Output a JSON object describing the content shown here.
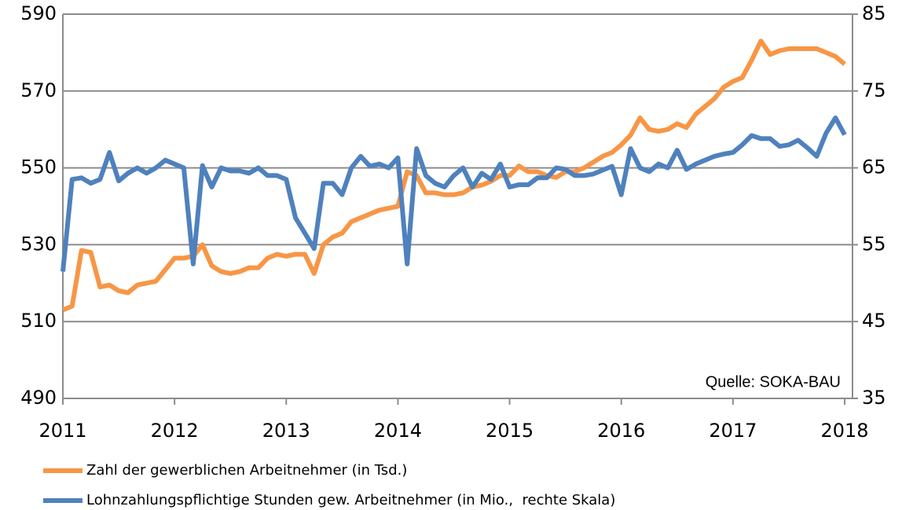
{
  "chart_data": {
    "type": "line",
    "x": [
      2011,
      2011.083,
      2011.167,
      2011.25,
      2011.333,
      2011.417,
      2011.5,
      2011.583,
      2011.667,
      2011.75,
      2011.833,
      2011.917,
      2012,
      2012.083,
      2012.167,
      2012.25,
      2012.333,
      2012.417,
      2012.5,
      2012.583,
      2012.667,
      2012.75,
      2012.833,
      2012.917,
      2013,
      2013.083,
      2013.167,
      2013.25,
      2013.333,
      2013.417,
      2013.5,
      2013.583,
      2013.667,
      2013.75,
      2013.833,
      2013.917,
      2014,
      2014.083,
      2014.167,
      2014.25,
      2014.333,
      2014.417,
      2014.5,
      2014.583,
      2014.667,
      2014.75,
      2014.833,
      2014.917,
      2015,
      2015.083,
      2015.167,
      2015.25,
      2015.333,
      2015.417,
      2015.5,
      2015.583,
      2015.667,
      2015.75,
      2015.833,
      2015.917,
      2016,
      2016.083,
      2016.167,
      2016.25,
      2016.333,
      2016.417,
      2016.5,
      2016.583,
      2016.667,
      2016.75,
      2016.833,
      2016.917,
      2017,
      2017.083,
      2017.167,
      2017.25,
      2017.333,
      2017.417,
      2017.5,
      2017.583,
      2017.667,
      2017.75,
      2017.833,
      2017.917,
      2018
    ],
    "series": [
      {
        "name": "Zahl der gewerblichen Arbeitnehmer (in Tsd.)",
        "color": "#f79646",
        "values": [
          513,
          514,
          528.5,
          528,
          519,
          519.5,
          518,
          517.5,
          519.5,
          520,
          520.5,
          523.5,
          526.5,
          526.5,
          527,
          530,
          524.5,
          523,
          522.5,
          523,
          524,
          524,
          526.5,
          527.5,
          527,
          527.5,
          527.5,
          522.5,
          530,
          532,
          533,
          536,
          537,
          538,
          539,
          539.5,
          540,
          549,
          548,
          543.5,
          543.5,
          543,
          543,
          543.5,
          545,
          545.5,
          546.5,
          548,
          548,
          550.5,
          549,
          549,
          548,
          547.5,
          549,
          549,
          550,
          551.5,
          553,
          554,
          556,
          558.5,
          563,
          560,
          559.5,
          560,
          561.5,
          560.5,
          564,
          566,
          568,
          571,
          572.5,
          573.5,
          578,
          583,
          579.5,
          580.5,
          581,
          581,
          581,
          581,
          580,
          579,
          577
        ]
      },
      {
        "name": "Lohnzahlungspflichtige Stunden gew. Arbeitnehmer (in Mio.,  rechte Skala)",
        "color": "#4f81bd",
        "axis": "y2",
        "values": [
          51.5,
          63.5,
          63.7,
          63,
          63.5,
          67,
          63.3,
          64.3,
          65,
          64.3,
          65,
          66,
          65.5,
          65,
          52.5,
          65.3,
          62.5,
          65,
          64.6,
          64.6,
          64.3,
          65,
          64,
          64,
          63.5,
          58.5,
          56.5,
          54.5,
          63,
          63,
          61.5,
          65,
          66.5,
          65.2,
          65.5,
          65,
          66.3,
          52.5,
          67.5,
          64,
          63,
          62.5,
          64,
          65,
          62.5,
          64.3,
          63.5,
          65.5,
          62.5,
          62.8,
          62.8,
          63.7,
          63.7,
          65,
          64.8,
          64,
          64,
          64.2,
          64.7,
          65.2,
          61.5,
          67.5,
          65,
          64.5,
          65.5,
          65,
          67.3,
          64.8,
          65.5,
          66,
          66.5,
          66.8,
          67,
          68,
          69.2,
          68.8,
          68.8,
          67.8,
          68,
          68.6,
          67.6,
          66.5,
          69.5,
          71.5,
          69.3
        ]
      }
    ],
    "xlim": [
      2011,
      2018.07
    ],
    "xticks": [
      2011,
      2012,
      2013,
      2014,
      2015,
      2016,
      2017,
      2018
    ],
    "ylim": [
      490,
      590
    ],
    "yticks": [
      490,
      510,
      530,
      550,
      570,
      590
    ],
    "y2lim": [
      35,
      85
    ],
    "y2ticks": [
      35,
      45,
      55,
      65,
      75,
      85
    ],
    "grid": true,
    "annotation": "Quelle: SOKA-BAU",
    "legend": "bottom"
  }
}
